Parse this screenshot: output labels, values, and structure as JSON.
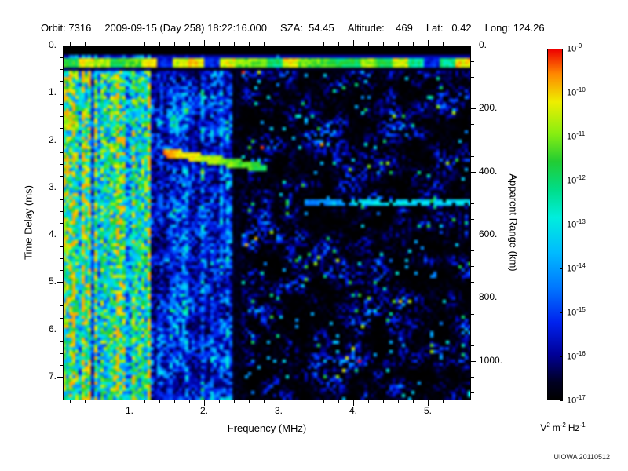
{
  "header": {
    "orbit": "Orbit: 7316",
    "datetime": "2009-09-15 (Day 258) 18:22:16.000",
    "sza": "SZA:  54.45",
    "altitude": "Altitude:    469",
    "lat": "Lat:   0.42",
    "long": "Long: 124.26"
  },
  "chart_data": {
    "type": "heatmap",
    "xlabel": "Frequency (MHz)",
    "ylabel": "Time Delay (ms)",
    "y2label": "Apparent Range (km)",
    "x_range": [
      0.105,
      5.58
    ],
    "y_range": [
      0,
      7.5
    ],
    "y2_range": [
      0,
      1125
    ],
    "x_ticks": {
      "values": [
        1,
        2,
        3,
        4,
        5
      ],
      "labels": [
        "1.",
        "2.",
        "3.",
        "4.",
        "5."
      ],
      "minor_step": 0.2
    },
    "y_ticks": {
      "values": [
        0,
        1,
        2,
        3,
        4,
        5,
        6,
        7
      ],
      "labels": [
        "0.",
        "1.",
        "2.",
        "3.",
        "4.",
        "5.",
        "6.",
        "7."
      ],
      "minor_step": 0.25
    },
    "y2_ticks": {
      "values": [
        0,
        200,
        400,
        600,
        800,
        1000
      ],
      "labels": [
        "0.",
        "200.",
        "400.",
        "600.",
        "800.",
        "1000."
      ],
      "minor_step": 50
    },
    "colorbar": {
      "scale": "log",
      "mantissa": "10",
      "exponents": [
        "-9",
        "-10",
        "-11",
        "-12",
        "-13",
        "-14",
        "-15",
        "-16",
        "-17"
      ],
      "unit_parts": [
        [
          "V",
          "2"
        ],
        [
          "m",
          "-2"
        ],
        [
          "Hz",
          "-1"
        ]
      ]
    },
    "colormap_stops": [
      [
        0.0,
        "#000000"
      ],
      [
        0.05,
        "#000022"
      ],
      [
        0.13,
        "#000099"
      ],
      [
        0.22,
        "#0022ee"
      ],
      [
        0.32,
        "#0077ff"
      ],
      [
        0.42,
        "#00bbff"
      ],
      [
        0.52,
        "#00eedd"
      ],
      [
        0.6,
        "#00dd88"
      ],
      [
        0.68,
        "#22cc33"
      ],
      [
        0.76,
        "#88ee11"
      ],
      [
        0.85,
        "#eeee00"
      ],
      [
        0.93,
        "#ff8800"
      ],
      [
        1.0,
        "#ee0000"
      ]
    ],
    "features": {
      "seed": 20110512,
      "top_black_max_t": 0.22,
      "surface_band": {
        "t": 0.35,
        "halfwidth": 0.1
      },
      "left_noise": {
        "f_max": 1.3
      },
      "dark_gap": {
        "f_min": 2.38,
        "f_max": 2.52
      },
      "ionospheric_echo": {
        "f_start": 1.45,
        "f_end": 2.85,
        "t_start": 2.25,
        "t_end": 2.6
      },
      "second_echo_line": {
        "f_start": 3.35,
        "f_end": 5.58,
        "t": 3.32
      },
      "left_bright_patch": {
        "f_max": 0.3,
        "t": 1.65,
        "t_halfwidth": 0.17
      }
    },
    "credit": "UIOWA 20110512"
  }
}
